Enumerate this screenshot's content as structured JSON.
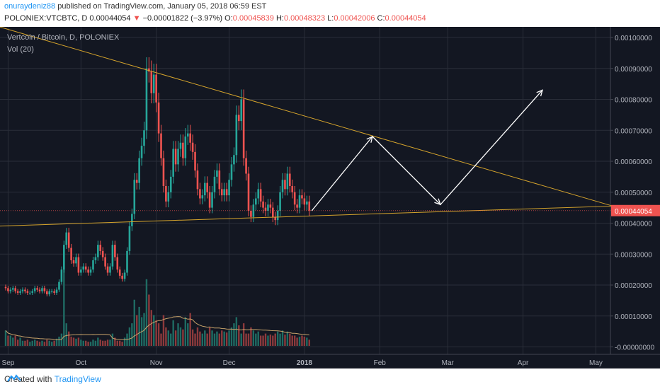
{
  "header": {
    "user": "onuraydeniz88",
    "published_text": " published on TradingView.com, January 05, 2018 06:59 EST",
    "symbol": "POLONIEX:VTCBTC, D",
    "last": "0.00044054",
    "change_arrow": "▼",
    "change": "−0.00001822 (−3.97%)",
    "o_label": "O:",
    "o_value": "0.00045839",
    "h_label": "H:",
    "h_value": "0.00048323",
    "l_label": "L:",
    "l_value": "0.00042006",
    "c_label": "C:",
    "c_value": "0.00044054"
  },
  "footer": {
    "created_with": "Created with",
    "brand": "TradingView",
    "logo_icon": "tradingview-logo-icon"
  },
  "colors": {
    "up": "#26a69a",
    "down": "#ef5350",
    "grid": "#2a2e39",
    "bg": "#131722",
    "trendline": "#d4a32c",
    "price_tag": "#ef5350",
    "axis_text": "#b2b5be"
  },
  "chart_data": {
    "type": "candlestick",
    "title": "Vertcoin / Bitcoin, D, POLONIEX",
    "indicator_label": "Vol (20)",
    "ylim": [
      -1e-05,
      0.00105
    ],
    "y_ticks": [
      "0.00100000",
      "0.00090000",
      "0.00080000",
      "0.00070000",
      "0.00060000",
      "0.00050000",
      "0.00040000",
      "0.00030000",
      "0.00020000",
      "0.00010000",
      "-0.00000000"
    ],
    "y_tick_values": [
      0.001,
      0.0009,
      0.0008,
      0.0007,
      0.0006,
      0.0005,
      0.0004,
      0.0003,
      0.0002,
      0.0001,
      0.0
    ],
    "x_ticks": [
      {
        "label": "Sep",
        "day": 1
      },
      {
        "label": "Oct",
        "day": 31
      },
      {
        "label": "Nov",
        "day": 62
      },
      {
        "label": "Dec",
        "day": 92
      },
      {
        "label": "2018",
        "day": 123
      },
      {
        "label": "Feb",
        "day": 154
      },
      {
        "label": "Mar",
        "day": 182
      },
      {
        "label": "Apr",
        "day": 213
      },
      {
        "label": "May",
        "day": 243
      }
    ],
    "x_day_range": [
      0,
      250
    ],
    "last_price_label": "0.00044054",
    "last_price": 0.00044054,
    "close_series": [
      0.00019,
      0.00018,
      0.000185,
      0.00019,
      0.00018,
      0.000175,
      0.00018,
      0.000185,
      0.00018,
      0.000175,
      0.000175,
      0.00018,
      0.00019,
      0.000185,
      0.00018,
      0.00019,
      0.00018,
      0.00017,
      0.00018,
      0.00018,
      0.000175,
      0.000185,
      0.00021,
      0.00025,
      0.00033,
      0.00037,
      0.00032,
      0.00028,
      0.00027,
      0.00029,
      0.00024,
      0.00025,
      0.00026,
      0.00025,
      0.00024,
      0.00025,
      0.00028,
      0.00029,
      0.00033,
      0.00031,
      0.00029,
      0.00026,
      0.00024,
      0.00026,
      0.00033,
      0.00029,
      0.00025,
      0.00023,
      0.00022,
      0.00024,
      0.00031,
      0.00039,
      0.00043,
      0.00054,
      0.00053,
      0.00061,
      0.00065,
      0.0007,
      0.0009,
      0.00089,
      0.00082,
      0.00088,
      0.00079,
      0.00069,
      0.00061,
      0.00052,
      0.00047,
      0.0005,
      0.00055,
      0.00064,
      0.00059,
      0.00064,
      0.00066,
      0.00061,
      0.00068,
      0.00069,
      0.00066,
      0.00063,
      0.00057,
      0.00051,
      0.00048,
      0.00049,
      0.00053,
      0.0005,
      0.00045,
      0.0005,
      0.00055,
      0.00057,
      0.00051,
      0.00049,
      0.00051,
      0.00049,
      0.00054,
      0.00059,
      0.00062,
      0.00075,
      0.00073,
      0.0008,
      0.00061,
      0.00056,
      0.00044,
      0.00042,
      0.00046,
      0.00048,
      0.00051,
      0.00047,
      0.00045,
      0.00044,
      0.00046,
      0.00045,
      0.00042,
      0.00041,
      0.00044,
      0.0005,
      0.00054,
      0.00051,
      0.00056,
      0.00052,
      0.0005,
      0.00046,
      0.00045,
      0.00049,
      0.00048,
      0.00046,
      0.00047,
      0.00044054
    ],
    "volume_series": [
      1.5e-05,
      1e-05,
      1e-05,
      8e-06,
      1e-05,
      6e-06,
      8e-06,
      5e-06,
      5e-06,
      6e-06,
      4e-06,
      5e-06,
      6e-06,
      5e-06,
      4e-06,
      5e-06,
      4e-06,
      6e-06,
      5e-06,
      4e-06,
      5e-06,
      7e-06,
      9e-06,
      1.2e-05,
      7.5e-05,
      2.2e-05,
      1.4e-05,
      9e-06,
      8e-06,
      7e-06,
      8e-06,
      6e-06,
      5e-06,
      5e-06,
      4e-06,
      4e-06,
      6e-06,
      5e-06,
      8e-06,
      6e-06,
      5e-06,
      5e-06,
      6e-06,
      6e-06,
      1.2e-05,
      8e-06,
      5e-06,
      5e-06,
      4e-06,
      8e-06,
      1.2e-05,
      1.8e-05,
      2.2e-05,
      4.5e-05,
      3e-05,
      3.8e-05,
      2.8e-05,
      3.2e-05,
      6.5e-05,
      5e-05,
      3.5e-05,
      3e-05,
      2.5e-05,
      2.2e-05,
      1.2e-05,
      3e-05,
      1.8e-05,
      1.5e-05,
      1.2e-05,
      2.5e-05,
      1.5e-05,
      2.2e-05,
      1.8e-05,
      1.6e-05,
      2.8e-05,
      2.2e-05,
      3.2e-05,
      1.6e-05,
      1.2e-05,
      1.8e-05,
      1.4e-05,
      1.2e-05,
      1.5e-05,
      1.2e-05,
      1.8e-05,
      1.5e-05,
      1.2e-05,
      1.4e-05,
      1.2e-05,
      1.5e-05,
      1.4e-05,
      1.3e-05,
      1.5e-05,
      1.8e-05,
      2.2e-05,
      2.8e-05,
      2e-05,
      1.2e-05,
      2.2e-05,
      1.2e-05,
      1.2e-05,
      1.8e-05,
      1.5e-05,
      1.2e-05,
      1.4e-05,
      1e-05,
      1e-05,
      1.2e-05,
      1e-05,
      1.1e-05,
      1e-05,
      1.2e-05,
      1.4e-05,
      1.2e-05,
      1.5e-05,
      1.1e-05,
      1.4e-05,
      1.2e-05,
      1e-05,
      1e-05,
      8e-06,
      9e-06,
      1e-05,
      9e-06,
      8e-06,
      6e-06
    ],
    "start_day": 0,
    "descending_trendline": [
      {
        "day": -5,
        "price": 0.00104
      },
      {
        "day": 250,
        "price": 0.000455
      }
    ],
    "ascending_trendline": [
      {
        "day": -5,
        "price": 0.00039
      },
      {
        "day": 250,
        "price": 0.000455
      }
    ],
    "projection_path": [
      {
        "day": 126,
        "price": 0.00044
      },
      {
        "day": 151,
        "price": 0.00068
      },
      {
        "day": 179,
        "price": 0.00046
      },
      {
        "day": 221,
        "price": 0.00083
      }
    ]
  }
}
